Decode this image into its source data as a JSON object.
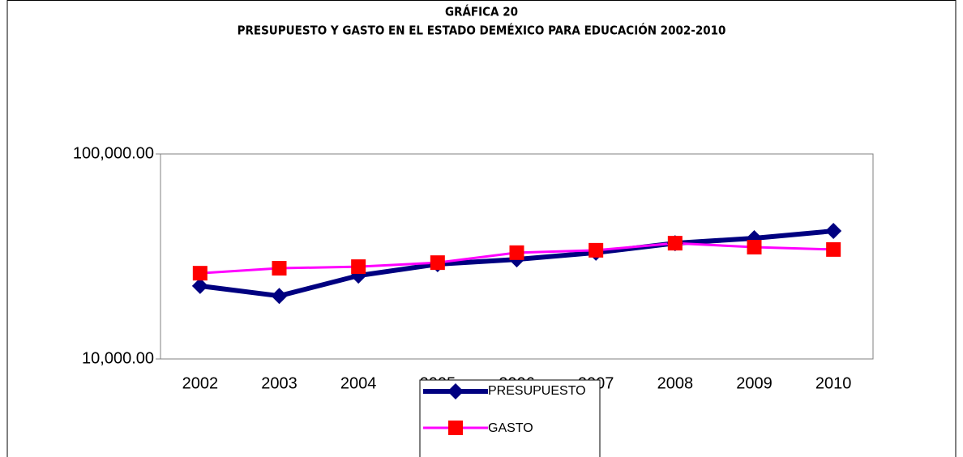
{
  "chart_data": {
    "type": "line",
    "title": "GRÁFICA 20",
    "subtitle": "PRESUPUESTO Y GASTO EN EL ESTADO DEMÉXICO PARA EDUCACIÓN 2002-2010",
    "categories": [
      "2002",
      "2003",
      "2004",
      "2005",
      "2006",
      "2007",
      "2008",
      "2009",
      "2010"
    ],
    "series": [
      {
        "name": "PRESUPUESTO",
        "color": "#000080",
        "marker_color": "#000080",
        "marker": "diamond",
        "values": [
          22700,
          20300,
          25500,
          29000,
          30600,
          33000,
          36700,
          38800,
          42100
        ]
      },
      {
        "name": "GASTO",
        "color": "#ff00ff",
        "marker_color": "#ff0000",
        "marker": "square",
        "values": [
          26200,
          27700,
          28200,
          29500,
          33000,
          33900,
          36700,
          35100,
          34200
        ]
      }
    ],
    "ylim": [
      10000,
      100000
    ],
    "yticks": [
      {
        "value": 10000,
        "label": "10,000.00"
      },
      {
        "value": 100000,
        "label": "100,000.00"
      }
    ],
    "log_y": true,
    "grid": false,
    "legend": "bottom"
  }
}
